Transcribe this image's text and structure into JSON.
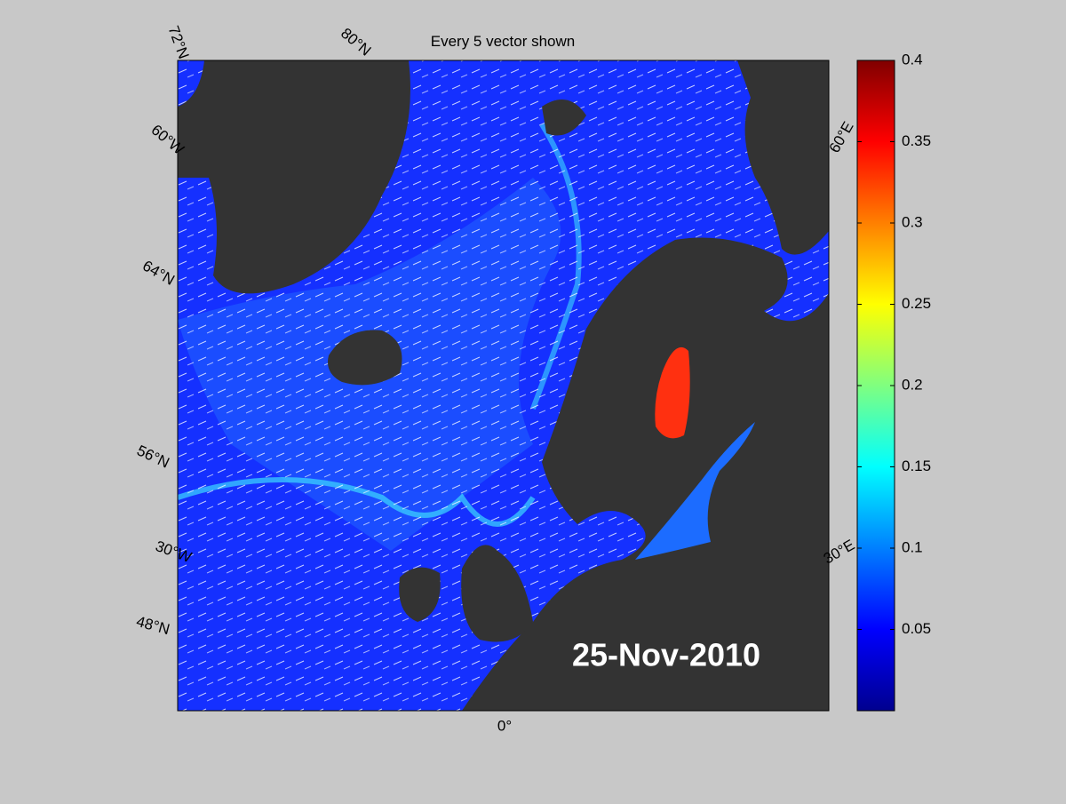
{
  "map": {
    "title": "Every 5 vector shown",
    "date": "25-Nov-2010",
    "grid_labels": [
      "72°N",
      "80°N",
      "60°W",
      "64°N",
      "56°N",
      "30°W",
      "48°N",
      "0°",
      "30°E",
      "60°E"
    ],
    "colorbar": {
      "colormap": "jet",
      "clim": [
        0,
        0.4
      ],
      "ticks": [
        0.05,
        0.1,
        0.15,
        0.2,
        0.25,
        0.3,
        0.35,
        0.4
      ]
    }
  }
}
